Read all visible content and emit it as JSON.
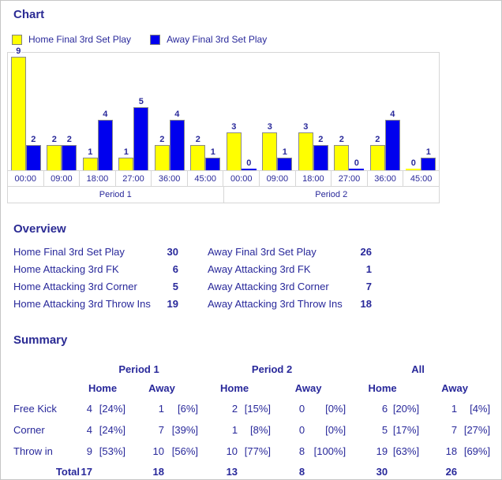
{
  "colors": {
    "navy_text": "#28289a",
    "home_bar": "#ffff00",
    "away_bar": "#0000ee",
    "bar_border": "#8a8a8a",
    "grid_border": "#d6d6d6",
    "page_border": "#c6c6c6"
  },
  "chart": {
    "heading": "Chart",
    "legend": [
      {
        "label": "Home Final 3rd Set Play",
        "color": "#ffff00"
      },
      {
        "label": "Away Final 3rd Set Play",
        "color": "#0000ee"
      }
    ]
  },
  "chart_data": {
    "type": "bar",
    "title": "Chart",
    "categories": [
      "00:00",
      "09:00",
      "18:00",
      "27:00",
      "36:00",
      "45:00",
      "00:00",
      "09:00",
      "18:00",
      "27:00",
      "36:00",
      "45:00"
    ],
    "group_labels": [
      "Period 1",
      "Period 2"
    ],
    "series": [
      {
        "name": "Home Final 3rd Set Play",
        "color": "#ffff00",
        "values": [
          9,
          2,
          1,
          1,
          2,
          2,
          3,
          3,
          3,
          2,
          2,
          0
        ]
      },
      {
        "name": "Away Final 3rd Set Play",
        "color": "#0000ee",
        "values": [
          2,
          2,
          4,
          5,
          4,
          1,
          0,
          1,
          2,
          0,
          4,
          1
        ]
      }
    ],
    "ylim": [
      0,
      9
    ],
    "grid": false,
    "legend_position": "top",
    "value_labels": true
  },
  "overview": {
    "heading": "Overview",
    "rows": [
      {
        "left_label": "Home Final 3rd Set Play",
        "left_value": "30",
        "right_label": "Away Final 3rd Set Play",
        "right_value": "26"
      },
      {
        "left_label": "Home Attacking 3rd FK",
        "left_value": "6",
        "right_label": "Away Attacking 3rd FK",
        "right_value": "1"
      },
      {
        "left_label": "Home Attacking 3rd Corner",
        "left_value": "5",
        "right_label": "Away Attacking 3rd Corner",
        "right_value": "7"
      },
      {
        "left_label": "Home Attacking 3rd Throw Ins",
        "left_value": "19",
        "right_label": "Away Attacking 3rd Throw Ins",
        "right_value": "18"
      }
    ]
  },
  "summary": {
    "heading": "Summary",
    "groups": [
      "Period 1",
      "Period 2",
      "All"
    ],
    "subheaders": [
      "Home",
      "Away"
    ],
    "rows": [
      {
        "label": "Free Kick",
        "values": [
          [
            "4",
            "[24%]"
          ],
          [
            "1",
            "[6%]"
          ],
          [
            "2",
            "[15%]"
          ],
          [
            "0",
            "[0%]"
          ],
          [
            "6",
            "[20%]"
          ],
          [
            "1",
            "[4%]"
          ]
        ]
      },
      {
        "label": "Corner",
        "values": [
          [
            "4",
            "[24%]"
          ],
          [
            "7",
            "[39%]"
          ],
          [
            "1",
            "[8%]"
          ],
          [
            "0",
            "[0%]"
          ],
          [
            "5",
            "[17%]"
          ],
          [
            "7",
            "[27%]"
          ]
        ]
      },
      {
        "label": "Throw in",
        "values": [
          [
            "9",
            "[53%]"
          ],
          [
            "10",
            "[56%]"
          ],
          [
            "10",
            "[77%]"
          ],
          [
            "8",
            "[100%]"
          ],
          [
            "19",
            "[63%]"
          ],
          [
            "18",
            "[69%]"
          ]
        ]
      }
    ],
    "total_label": "Total",
    "totals": [
      "17",
      "18",
      "13",
      "8",
      "30",
      "26"
    ]
  }
}
